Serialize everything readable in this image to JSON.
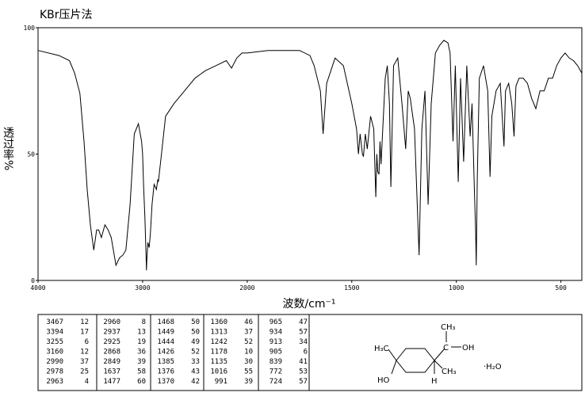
{
  "chart_data": {
    "type": "line",
    "title": "KBr压片法",
    "ylabel": "透过率%",
    "xlabel": "波数/cm⁻¹",
    "xlim": [
      4000,
      400
    ],
    "xticks": [
      4000,
      3000,
      2000,
      1500,
      1000,
      500
    ],
    "ylim": [
      0,
      100
    ],
    "yticks": [
      0,
      50,
      100
    ],
    "color": "#000000",
    "x": [
      4000,
      3800,
      3700,
      3650,
      3600,
      3560,
      3530,
      3500,
      3467,
      3440,
      3420,
      3394,
      3360,
      3330,
      3300,
      3255,
      3220,
      3190,
      3160,
      3120,
      3080,
      3040,
      3010,
      3000,
      2990,
      2978,
      2963,
      2960,
      2950,
      2937,
      2925,
      2910,
      2890,
      2868,
      2855,
      2849,
      2820,
      2780,
      2700,
      2600,
      2500,
      2400,
      2300,
      2200,
      2150,
      2100,
      2050,
      2000,
      1900,
      1800,
      1750,
      1700,
      1680,
      1650,
      1637,
      1620,
      1580,
      1540,
      1500,
      1477,
      1468,
      1460,
      1449,
      1444,
      1435,
      1426,
      1410,
      1395,
      1385,
      1380,
      1376,
      1370,
      1365,
      1360,
      1340,
      1330,
      1320,
      1313,
      1300,
      1280,
      1260,
      1242,
      1230,
      1220,
      1200,
      1178,
      1165,
      1150,
      1135,
      1120,
      1100,
      1080,
      1060,
      1040,
      1030,
      1016,
      1005,
      991,
      980,
      965,
      950,
      934,
      925,
      913,
      908,
      905,
      900,
      890,
      870,
      850,
      839,
      830,
      810,
      790,
      772,
      765,
      750,
      735,
      724,
      715,
      700,
      680,
      660,
      640,
      620,
      600,
      580,
      560,
      540,
      520,
      500,
      480,
      460,
      440,
      420,
      400
    ],
    "values": [
      91,
      89,
      87,
      82,
      74,
      55,
      36,
      22,
      12,
      20,
      20,
      17,
      22,
      20,
      17,
      6,
      9,
      10,
      12,
      30,
      58,
      62,
      55,
      50,
      37,
      25,
      4,
      8,
      15,
      13,
      19,
      30,
      38,
      36,
      40,
      39,
      50,
      65,
      70,
      75,
      80,
      83,
      85,
      87,
      84,
      88,
      90,
      90,
      91,
      91,
      91,
      89,
      85,
      75,
      58,
      78,
      88,
      85,
      70,
      60,
      50,
      58,
      50,
      49,
      58,
      52,
      65,
      60,
      33,
      50,
      43,
      42,
      55,
      46,
      80,
      85,
      70,
      37,
      85,
      88,
      70,
      52,
      75,
      72,
      60,
      10,
      60,
      75,
      30,
      70,
      90,
      93,
      95,
      94,
      90,
      55,
      85,
      39,
      80,
      47,
      85,
      57,
      70,
      34,
      20,
      6,
      40,
      80,
      85,
      75,
      41,
      65,
      75,
      78,
      53,
      75,
      78,
      70,
      57,
      77,
      80,
      80,
      78,
      72,
      68,
      75,
      75,
      80,
      80,
      85,
      88,
      90,
      88,
      87,
      85,
      82
    ]
  },
  "peak_table": {
    "columns": [
      [
        [
          3467,
          12
        ],
        [
          3394,
          17
        ],
        [
          3255,
          6
        ],
        [
          3160,
          12
        ],
        [
          2990,
          37
        ],
        [
          2978,
          25
        ],
        [
          2963,
          4
        ]
      ],
      [
        [
          2960,
          8
        ],
        [
          2937,
          13
        ],
        [
          2925,
          19
        ],
        [
          2868,
          36
        ],
        [
          2849,
          39
        ],
        [
          1637,
          58
        ],
        [
          1477,
          60
        ]
      ],
      [
        [
          1468,
          50
        ],
        [
          1449,
          50
        ],
        [
          1444,
          49
        ],
        [
          1426,
          52
        ],
        [
          1385,
          33
        ],
        [
          1376,
          43
        ],
        [
          1370,
          42
        ]
      ],
      [
        [
          1360,
          46
        ],
        [
          1313,
          37
        ],
        [
          1242,
          52
        ],
        [
          1178,
          10
        ],
        [
          1135,
          30
        ],
        [
          1016,
          55
        ],
        [
          991,
          39
        ]
      ],
      [
        [
          965,
          47
        ],
        [
          934,
          57
        ],
        [
          913,
          34
        ],
        [
          905,
          6
        ],
        [
          839,
          41
        ],
        [
          772,
          53
        ],
        [
          724,
          57
        ]
      ]
    ]
  },
  "structure": {
    "labels": [
      "CH₃",
      "C",
      "OH",
      "H₃C",
      "HO",
      "CH₃",
      "H",
      "·H₂O"
    ]
  }
}
